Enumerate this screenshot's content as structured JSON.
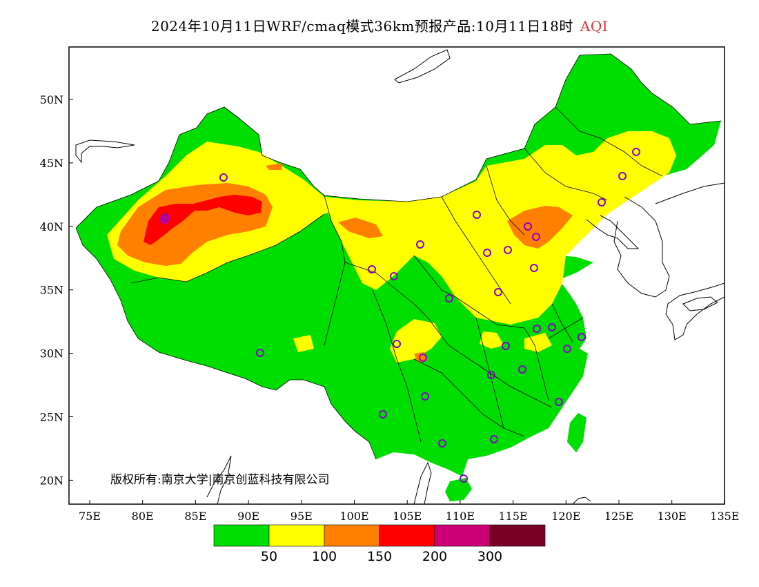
{
  "title": {
    "main": "2024年10月11日WRF/cmaq模式36km预报产品:10月11日18时",
    "variable": "AQI"
  },
  "axes": {
    "lat_labels": [
      "50N",
      "45N",
      "40N",
      "35N",
      "30N",
      "25N",
      "20N"
    ],
    "lon_labels": [
      "75E",
      "80E",
      "85E",
      "90E",
      "95E",
      "100E",
      "105E",
      "110E",
      "115E",
      "120E",
      "125E",
      "130E",
      "135E"
    ]
  },
  "copyright": "版权所有:南京大学|南京创蓝科技有限公司",
  "colorbar": {
    "colors": [
      "#00dd00",
      "#ffff00",
      "#ff8000",
      "#ff0000",
      "#cc0077",
      "#7a0026"
    ],
    "labels": [
      "50",
      "100",
      "150",
      "200",
      "300"
    ]
  },
  "map_colors": {
    "border": "#000000",
    "station": "#8800cc"
  }
}
